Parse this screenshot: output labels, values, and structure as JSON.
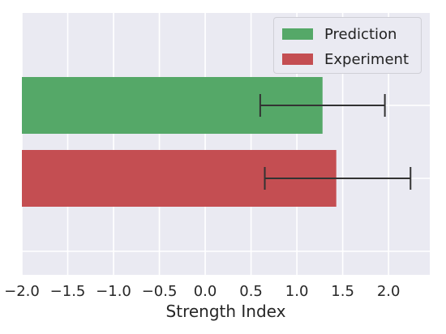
{
  "chart_data": {
    "type": "bar",
    "orientation": "horizontal",
    "xlabel": "Strength Index",
    "xlim": [
      -2.0,
      2.45
    ],
    "xticks": [
      "-2.0",
      "-1.5",
      "-1.0",
      "-0.5",
      "0.0",
      "0.5",
      "1.0",
      "1.5",
      "2.0"
    ],
    "xtick_values": [
      -2.0,
      -1.5,
      -1.0,
      -0.5,
      0.0,
      0.5,
      1.0,
      1.5,
      2.0
    ],
    "grid": true,
    "legend_position": "top-right",
    "base": -2.0,
    "series": [
      {
        "name": "Prediction",
        "value": 1.28,
        "error_low": 0.6,
        "error_high": 1.96,
        "color": "#55a868"
      },
      {
        "name": "Experiment",
        "value": 1.43,
        "error_low": 0.65,
        "error_high": 2.24,
        "color": "#c44e52"
      }
    ]
  },
  "legend": {
    "items": [
      {
        "label": "Prediction",
        "color": "#55a868"
      },
      {
        "label": "Experiment",
        "color": "#c44e52"
      }
    ]
  }
}
